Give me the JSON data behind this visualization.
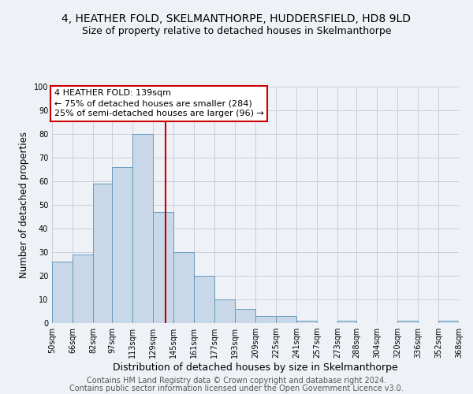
{
  "title1": "4, HEATHER FOLD, SKELMANTHORPE, HUDDERSFIELD, HD8 9LD",
  "title2": "Size of property relative to detached houses in Skelmanthorpe",
  "xlabel": "Distribution of detached houses by size in Skelmanthorpe",
  "ylabel": "Number of detached properties",
  "bin_edges": [
    50,
    66,
    82,
    97,
    113,
    129,
    145,
    161,
    177,
    193,
    209,
    225,
    241,
    257,
    273,
    288,
    304,
    320,
    336,
    352,
    368
  ],
  "bar_heights": [
    26,
    29,
    59,
    66,
    80,
    47,
    30,
    20,
    10,
    6,
    3,
    3,
    1,
    0,
    1,
    0,
    0,
    1,
    0,
    1
  ],
  "bar_color": "#c8d8e8",
  "bar_edge_color": "#6699bb",
  "vline_x": 139,
  "vline_color": "#cc0000",
  "annotation_text": "4 HEATHER FOLD: 139sqm\n← 75% of detached houses are smaller (284)\n25% of semi-detached houses are larger (96) →",
  "annotation_box_color": "#ffffff",
  "annotation_box_edge_color": "#cc0000",
  "ylim": [
    0,
    100
  ],
  "yticks": [
    0,
    10,
    20,
    30,
    40,
    50,
    60,
    70,
    80,
    90,
    100
  ],
  "grid_color": "#ccccdd",
  "footer1": "Contains HM Land Registry data © Crown copyright and database right 2024.",
  "footer2": "Contains public sector information licensed under the Open Government Licence v3.0.",
  "bg_color": "#eef2f7",
  "title1_fontsize": 10,
  "title2_fontsize": 9,
  "xlabel_fontsize": 9,
  "ylabel_fontsize": 8.5,
  "tick_fontsize": 7,
  "footer_fontsize": 7,
  "annotation_fontsize": 8
}
